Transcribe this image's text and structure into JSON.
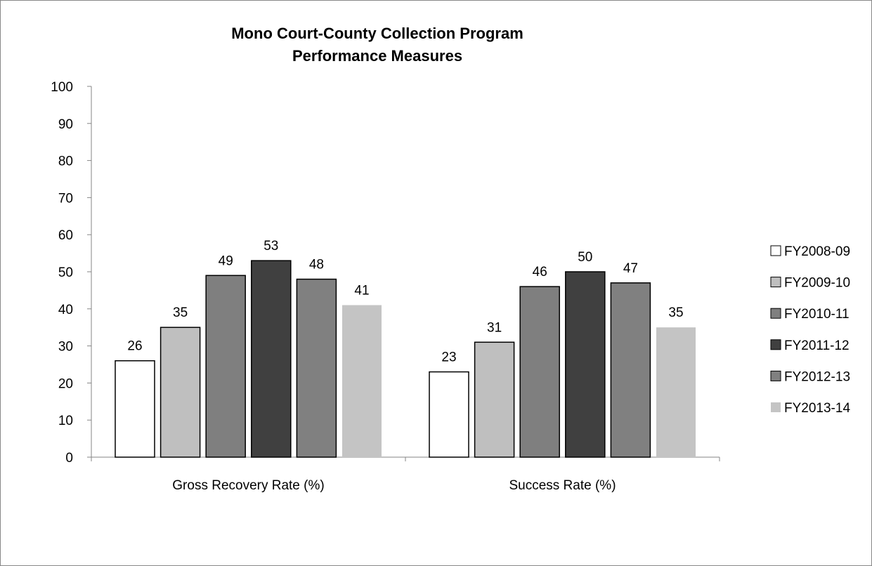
{
  "chart_data": {
    "type": "bar",
    "title": [
      "Mono  Court-County Collection Program",
      "Performance Measures"
    ],
    "xlabel": "",
    "ylabel": "",
    "ylim": [
      0,
      100
    ],
    "yticks": [
      0,
      10,
      20,
      30,
      40,
      50,
      60,
      70,
      80,
      90,
      100
    ],
    "grid": false,
    "legend_position": "right",
    "categories": [
      "Gross Recovery Rate (%)",
      "Success Rate (%)"
    ],
    "series": [
      {
        "name": "FY2008-09",
        "values": [
          26,
          23
        ],
        "color": "#ffffff"
      },
      {
        "name": "FY2009-10",
        "values": [
          35,
          31
        ],
        "color": "#bfbfbf"
      },
      {
        "name": "FY2010-11",
        "values": [
          49,
          46
        ],
        "color": "#7f7f7f"
      },
      {
        "name": "FY2011-12",
        "values": [
          53,
          50
        ],
        "color": "#404040"
      },
      {
        "name": "FY2012-13",
        "values": [
          48,
          47
        ],
        "color": "#808080"
      },
      {
        "name": "FY2013-14",
        "values": [
          41,
          35
        ],
        "color": "#c4c4c4"
      }
    ]
  }
}
